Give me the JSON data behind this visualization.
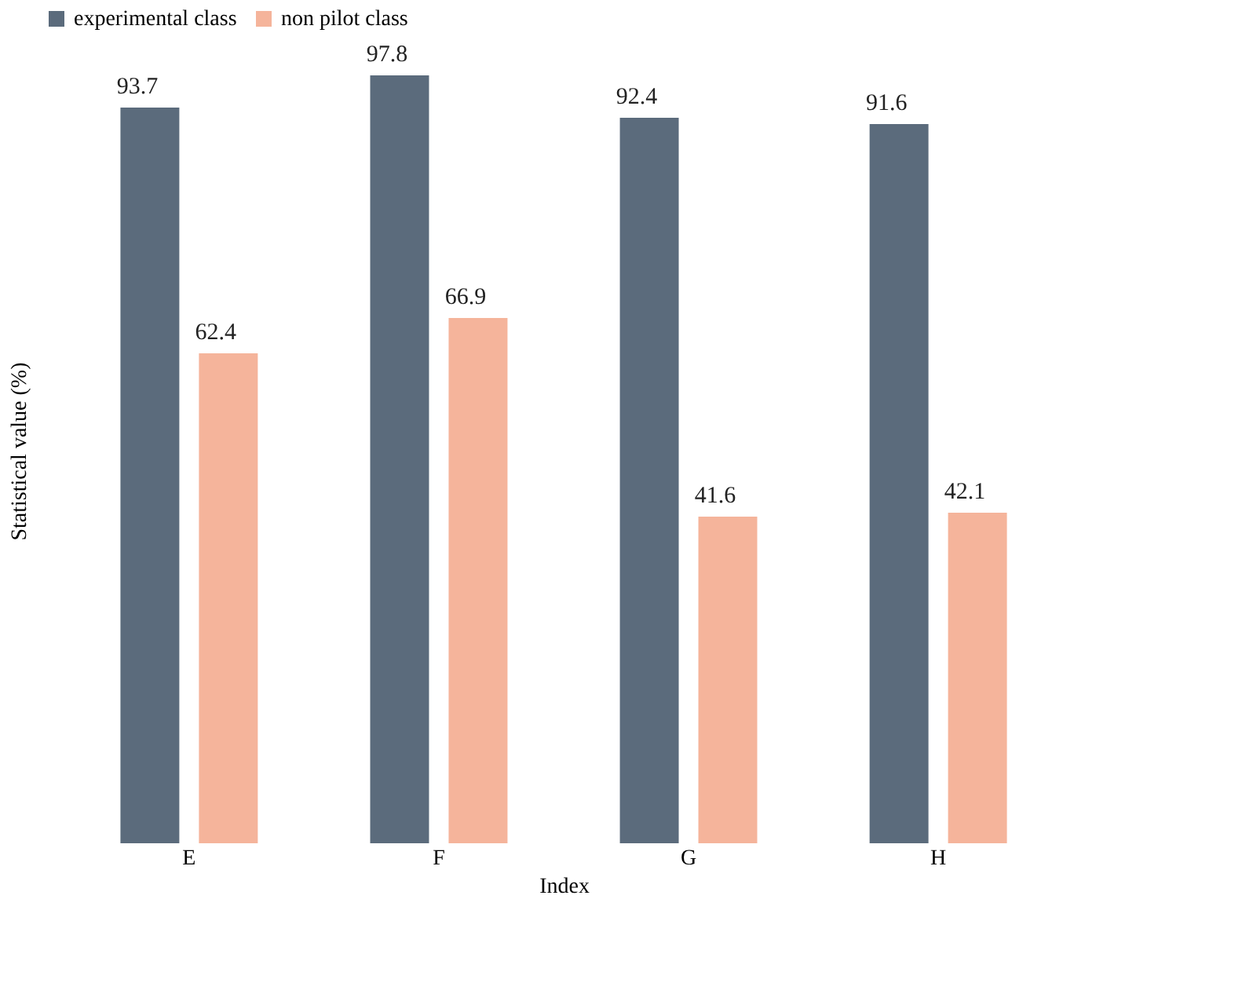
{
  "chart_data": {
    "type": "bar",
    "xlabel": "Index",
    "ylabel": "Statistical value (%)",
    "categories": [
      "E",
      "F",
      "G",
      "H"
    ],
    "series": [
      {
        "name": "experimental class",
        "color": "#5b6b7c",
        "values": [
          93.7,
          97.8,
          92.4,
          91.6
        ]
      },
      {
        "name": "non pilot class",
        "color": "#f5b49b",
        "values": [
          62.4,
          66.9,
          41.6,
          42.1
        ]
      }
    ],
    "data_labels": true,
    "legend": "top",
    "grid": false,
    "tick_labels": "x"
  }
}
